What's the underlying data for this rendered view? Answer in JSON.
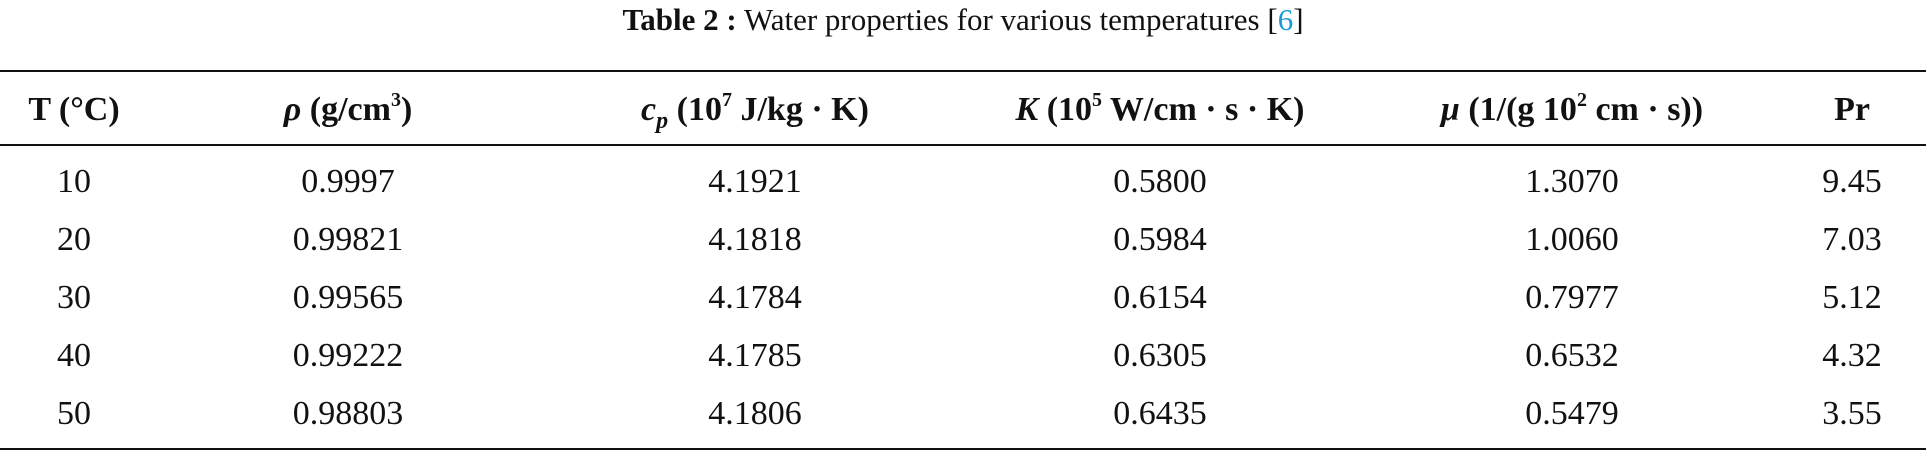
{
  "title": {
    "label": "Table 2 :",
    "text": "Water properties for various temperatures [",
    "ref": "6",
    "close": "]"
  },
  "table": {
    "header": [
      [
        {
          "text": "T (°C)"
        }
      ],
      [
        {
          "text": "ρ",
          "italic": true
        },
        {
          "text": " (g/cm"
        },
        {
          "text": "3",
          "sup": true
        },
        {
          "text": ")"
        }
      ],
      [
        {
          "text": "c",
          "italic": true
        },
        {
          "text": "p",
          "italic": true,
          "sub": true
        },
        {
          "text": " (10"
        },
        {
          "text": "7",
          "sup": true
        },
        {
          "text": " J/kg · K)"
        }
      ],
      [
        {
          "text": "K",
          "italic": true
        },
        {
          "text": " (10"
        },
        {
          "text": "5",
          "sup": true
        },
        {
          "text": " W/cm · s · K)"
        }
      ],
      [
        {
          "text": "μ",
          "italic": true
        },
        {
          "text": " (1/(g 10"
        },
        {
          "text": "2",
          "sup": true
        },
        {
          "text": " cm · s))"
        }
      ],
      [
        {
          "text": "Pr"
        }
      ]
    ],
    "rows": [
      [
        "10",
        "0.9997",
        "4.1921",
        "0.5800",
        "1.3070",
        "9.45"
      ],
      [
        "20",
        "0.99821",
        "4.1818",
        "0.5984",
        "1.0060",
        "7.03"
      ],
      [
        "30",
        "0.99565",
        "4.1784",
        "0.6154",
        "0.7977",
        "5.12"
      ],
      [
        "40",
        "0.99222",
        "4.1785",
        "0.6305",
        "0.6532",
        "4.32"
      ],
      [
        "50",
        "0.98803",
        "4.1806",
        "0.6435",
        "0.5479",
        "3.55"
      ]
    ]
  }
}
